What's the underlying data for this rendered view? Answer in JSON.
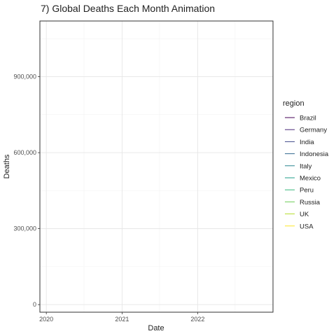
{
  "chart_data": {
    "type": "line",
    "title": "7) Global Deaths Each Month Animation",
    "xlabel": "Date",
    "ylabel": "Deaths",
    "x_ticks": [
      "2020",
      "2021",
      "2022"
    ],
    "y_ticks": [
      "0",
      "300,000",
      "600,000",
      "900,000"
    ],
    "x_range": [
      "2019-12-01",
      "2022-12-31"
    ],
    "ylim": [
      -30000,
      1120000
    ],
    "grid": true,
    "legend": {
      "title": "region",
      "placement": "right",
      "entries": [
        "Brazil",
        "Germany",
        "India",
        "Indonesia",
        "Italy",
        "Mexico",
        "Peru",
        "Russia",
        "UK",
        "USA"
      ]
    },
    "series": [
      {
        "name": "Brazil",
        "color": "#440154",
        "values": []
      },
      {
        "name": "Germany",
        "color": "#482878",
        "values": []
      },
      {
        "name": "India",
        "color": "#3e4989",
        "values": []
      },
      {
        "name": "Indonesia",
        "color": "#31688e",
        "values": []
      },
      {
        "name": "Italy",
        "color": "#26828e",
        "values": []
      },
      {
        "name": "Mexico",
        "color": "#1f9e89",
        "values": []
      },
      {
        "name": "Peru",
        "color": "#35b779",
        "values": []
      },
      {
        "name": "Russia",
        "color": "#6ece58",
        "values": []
      },
      {
        "name": "UK",
        "color": "#b5de2b",
        "values": []
      },
      {
        "name": "USA",
        "color": "#fde725",
        "values": []
      }
    ]
  }
}
